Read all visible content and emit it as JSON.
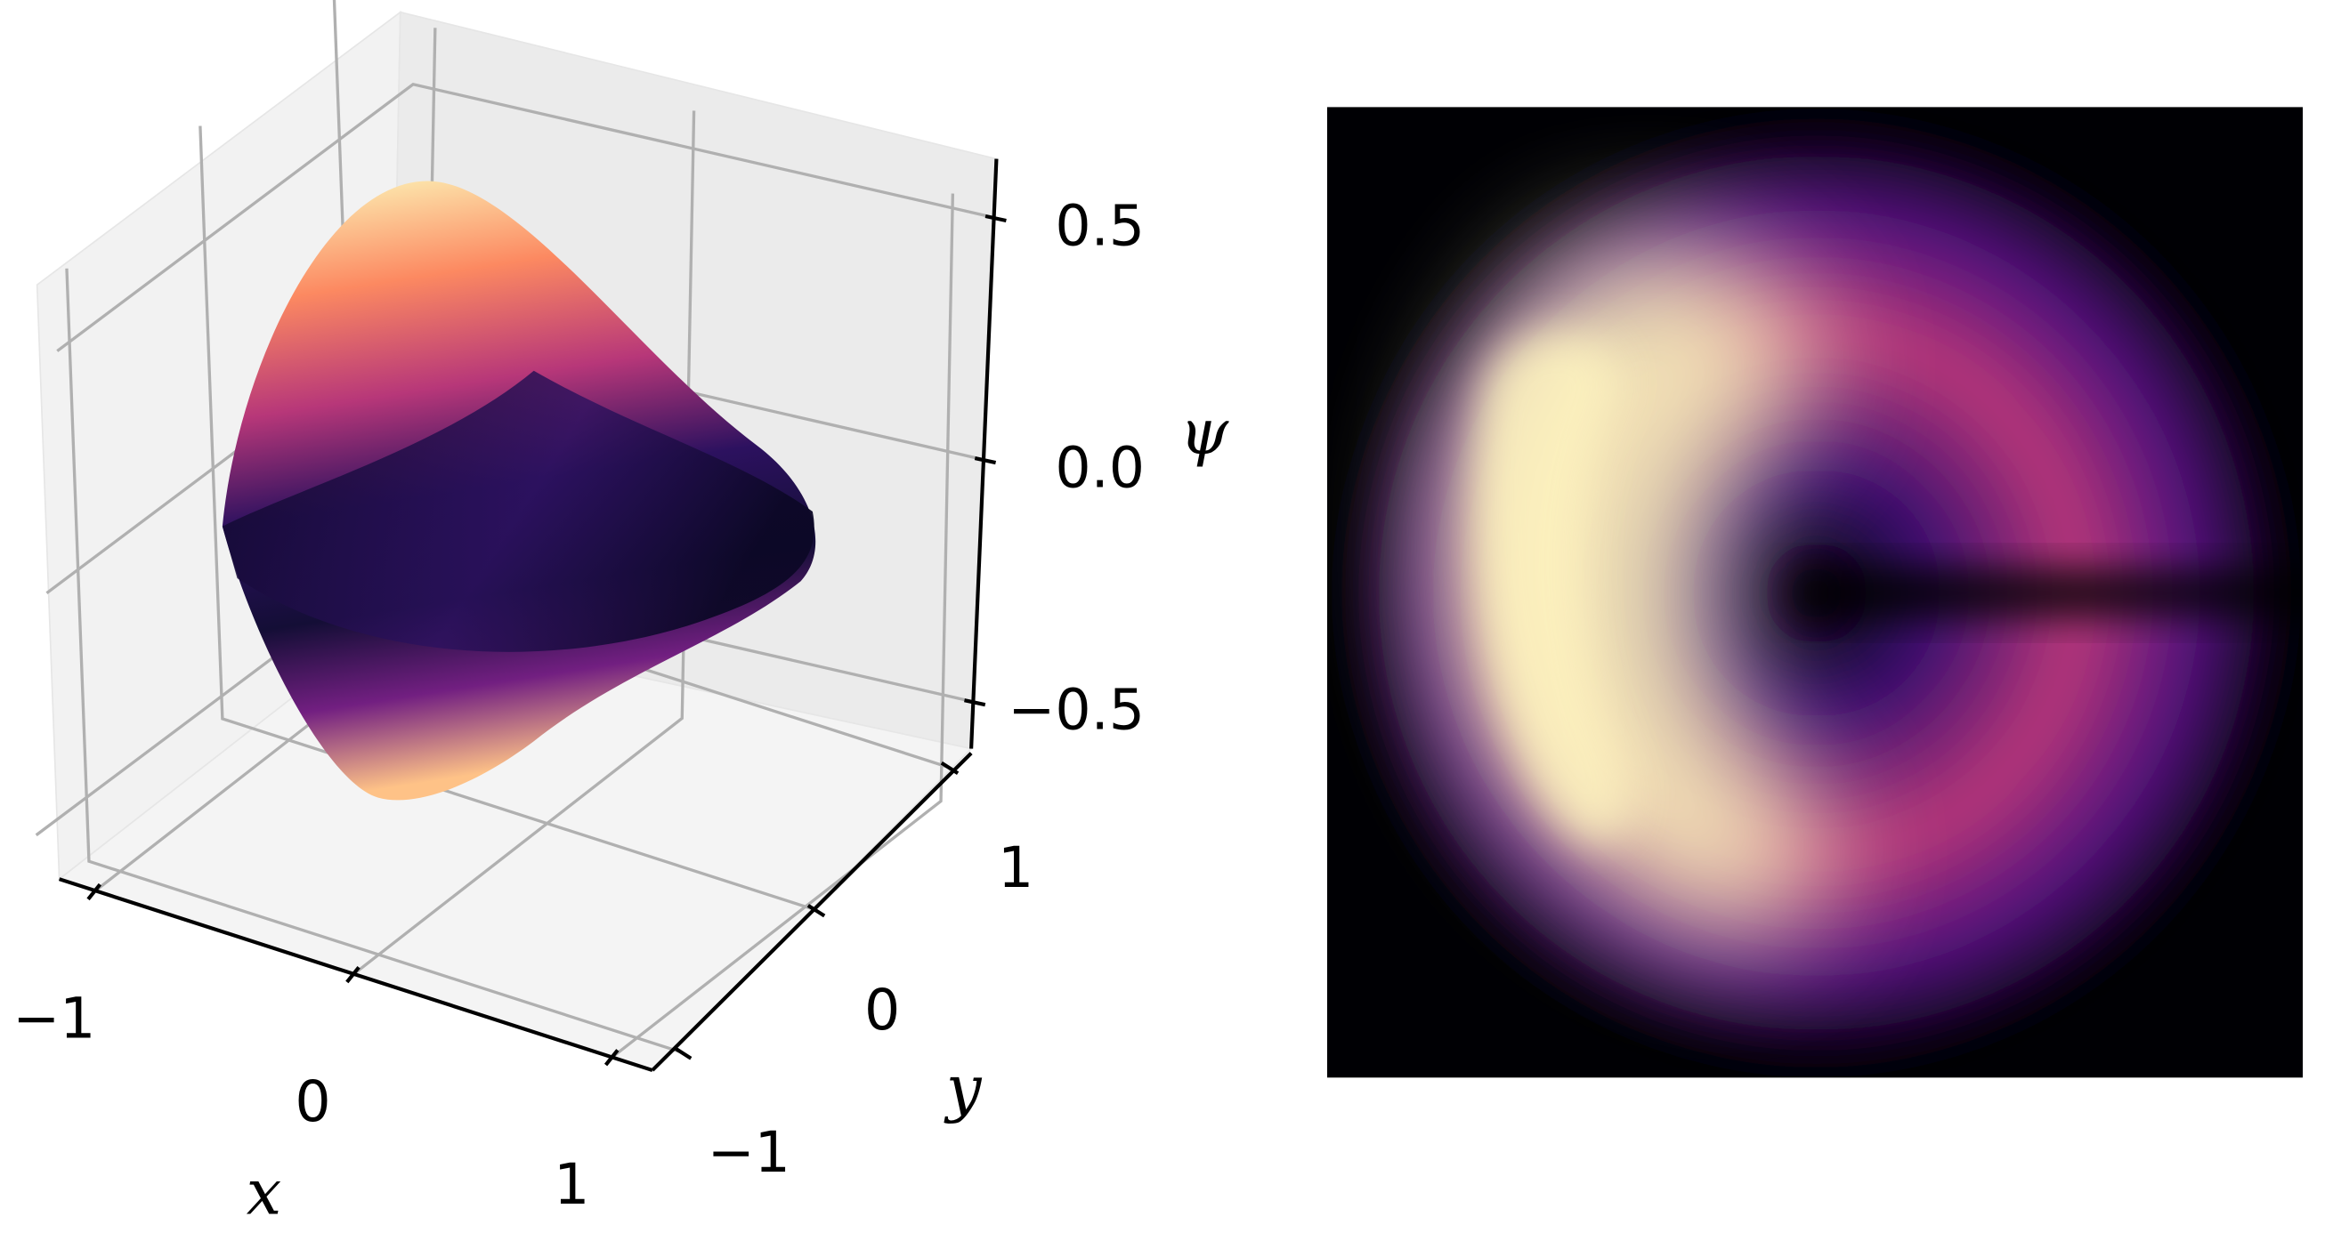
{
  "chart_data": [
    {
      "type": "surface3d",
      "xlabel": "x",
      "ylabel": "y",
      "zlabel": "ψ",
      "xlim": [
        -1.1,
        1.1
      ],
      "ylim": [
        -1.1,
        1.1
      ],
      "zlim": [
        -0.6,
        0.6
      ],
      "xticks": [
        {
          "value": -1,
          "label": "−1"
        },
        0,
        1
      ],
      "yticks": [
        {
          "value": -1,
          "label": "−1"
        },
        0,
        1
      ],
      "zticks": [
        {
          "value": -0.5,
          "label": "−0.5"
        },
        {
          "value": 0,
          "label": "0.0"
        },
        0.5
      ]
    },
    {
      "type": "image"
    }
  ]
}
